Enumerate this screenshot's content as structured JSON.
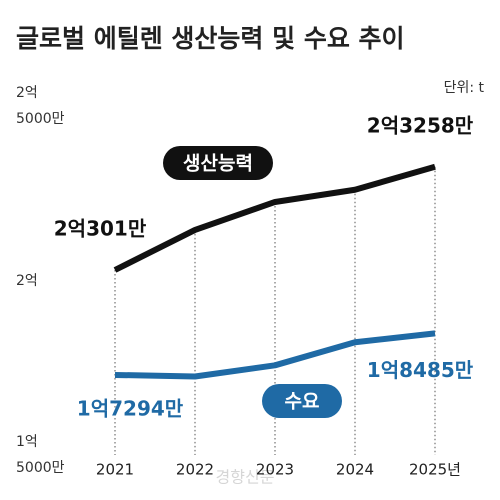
{
  "chart_data": {
    "type": "line",
    "title": "글로벌 에틸렌 생산능력 및 수요 추이",
    "unit": "단위: t",
    "watermark": "경향신문",
    "categories": [
      "2021",
      "2022",
      "2023",
      "2024",
      "2025년"
    ],
    "ylim": [
      150000000,
      250000000
    ],
    "yticks": [
      {
        "value": 150000000,
        "label": "1억\n5000만"
      },
      {
        "value": 200000000,
        "label": "2억"
      },
      {
        "value": 250000000,
        "label": "2억\n5000만"
      }
    ],
    "series": [
      {
        "name": "생산능력",
        "color": "#111111",
        "values": [
          203010000,
          214500000,
          222500000,
          226000000,
          232580000
        ],
        "value_labels": [
          "2억301만",
          null,
          null,
          null,
          "2억3258만"
        ]
      },
      {
        "name": "수요",
        "color": "#1f6aa5",
        "values": [
          172940000,
          172500000,
          175700000,
          182300000,
          184850000
        ],
        "value_labels": [
          "1억7294만",
          null,
          null,
          null,
          "1억8485만"
        ]
      }
    ]
  }
}
